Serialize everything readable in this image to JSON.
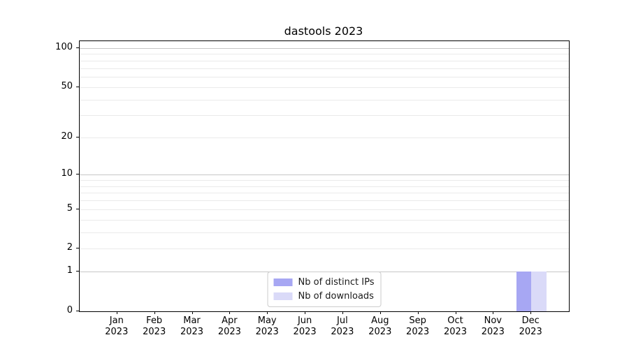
{
  "chart_data": {
    "type": "bar",
    "title": "dastools 2023",
    "categories": [
      "Jan",
      "Feb",
      "Mar",
      "Apr",
      "May",
      "Jun",
      "Jul",
      "Aug",
      "Sep",
      "Oct",
      "Nov",
      "Dec"
    ],
    "category_year_label": "2023",
    "series": [
      {
        "name": "Nb of distinct IPs",
        "color": "#a7a7f3",
        "values": [
          0,
          0,
          0,
          0,
          0,
          0,
          0,
          0,
          0,
          0,
          0,
          1
        ]
      },
      {
        "name": "Nb of downloads",
        "color": "#dadaf8",
        "values": [
          0,
          0,
          0,
          0,
          0,
          0,
          0,
          0,
          0,
          0,
          0,
          1
        ]
      }
    ],
    "y_axis": {
      "scale": "log1p",
      "tick_labels": [
        100,
        50,
        20,
        10,
        5,
        2,
        1,
        0
      ],
      "major_gridlines": [
        1,
        10,
        100
      ],
      "minor_gridlines": [
        2,
        3,
        4,
        5,
        6,
        7,
        8,
        9,
        20,
        30,
        40,
        50,
        60,
        70,
        80,
        90
      ],
      "ymin": 0,
      "ymax": 113
    },
    "legend_position": "lower center",
    "grid": true,
    "colors": {
      "major_grid": "#c6c6c6",
      "minor_grid": "#eaeaea",
      "spine": "#000000",
      "legend_border": "#cccccc"
    }
  }
}
